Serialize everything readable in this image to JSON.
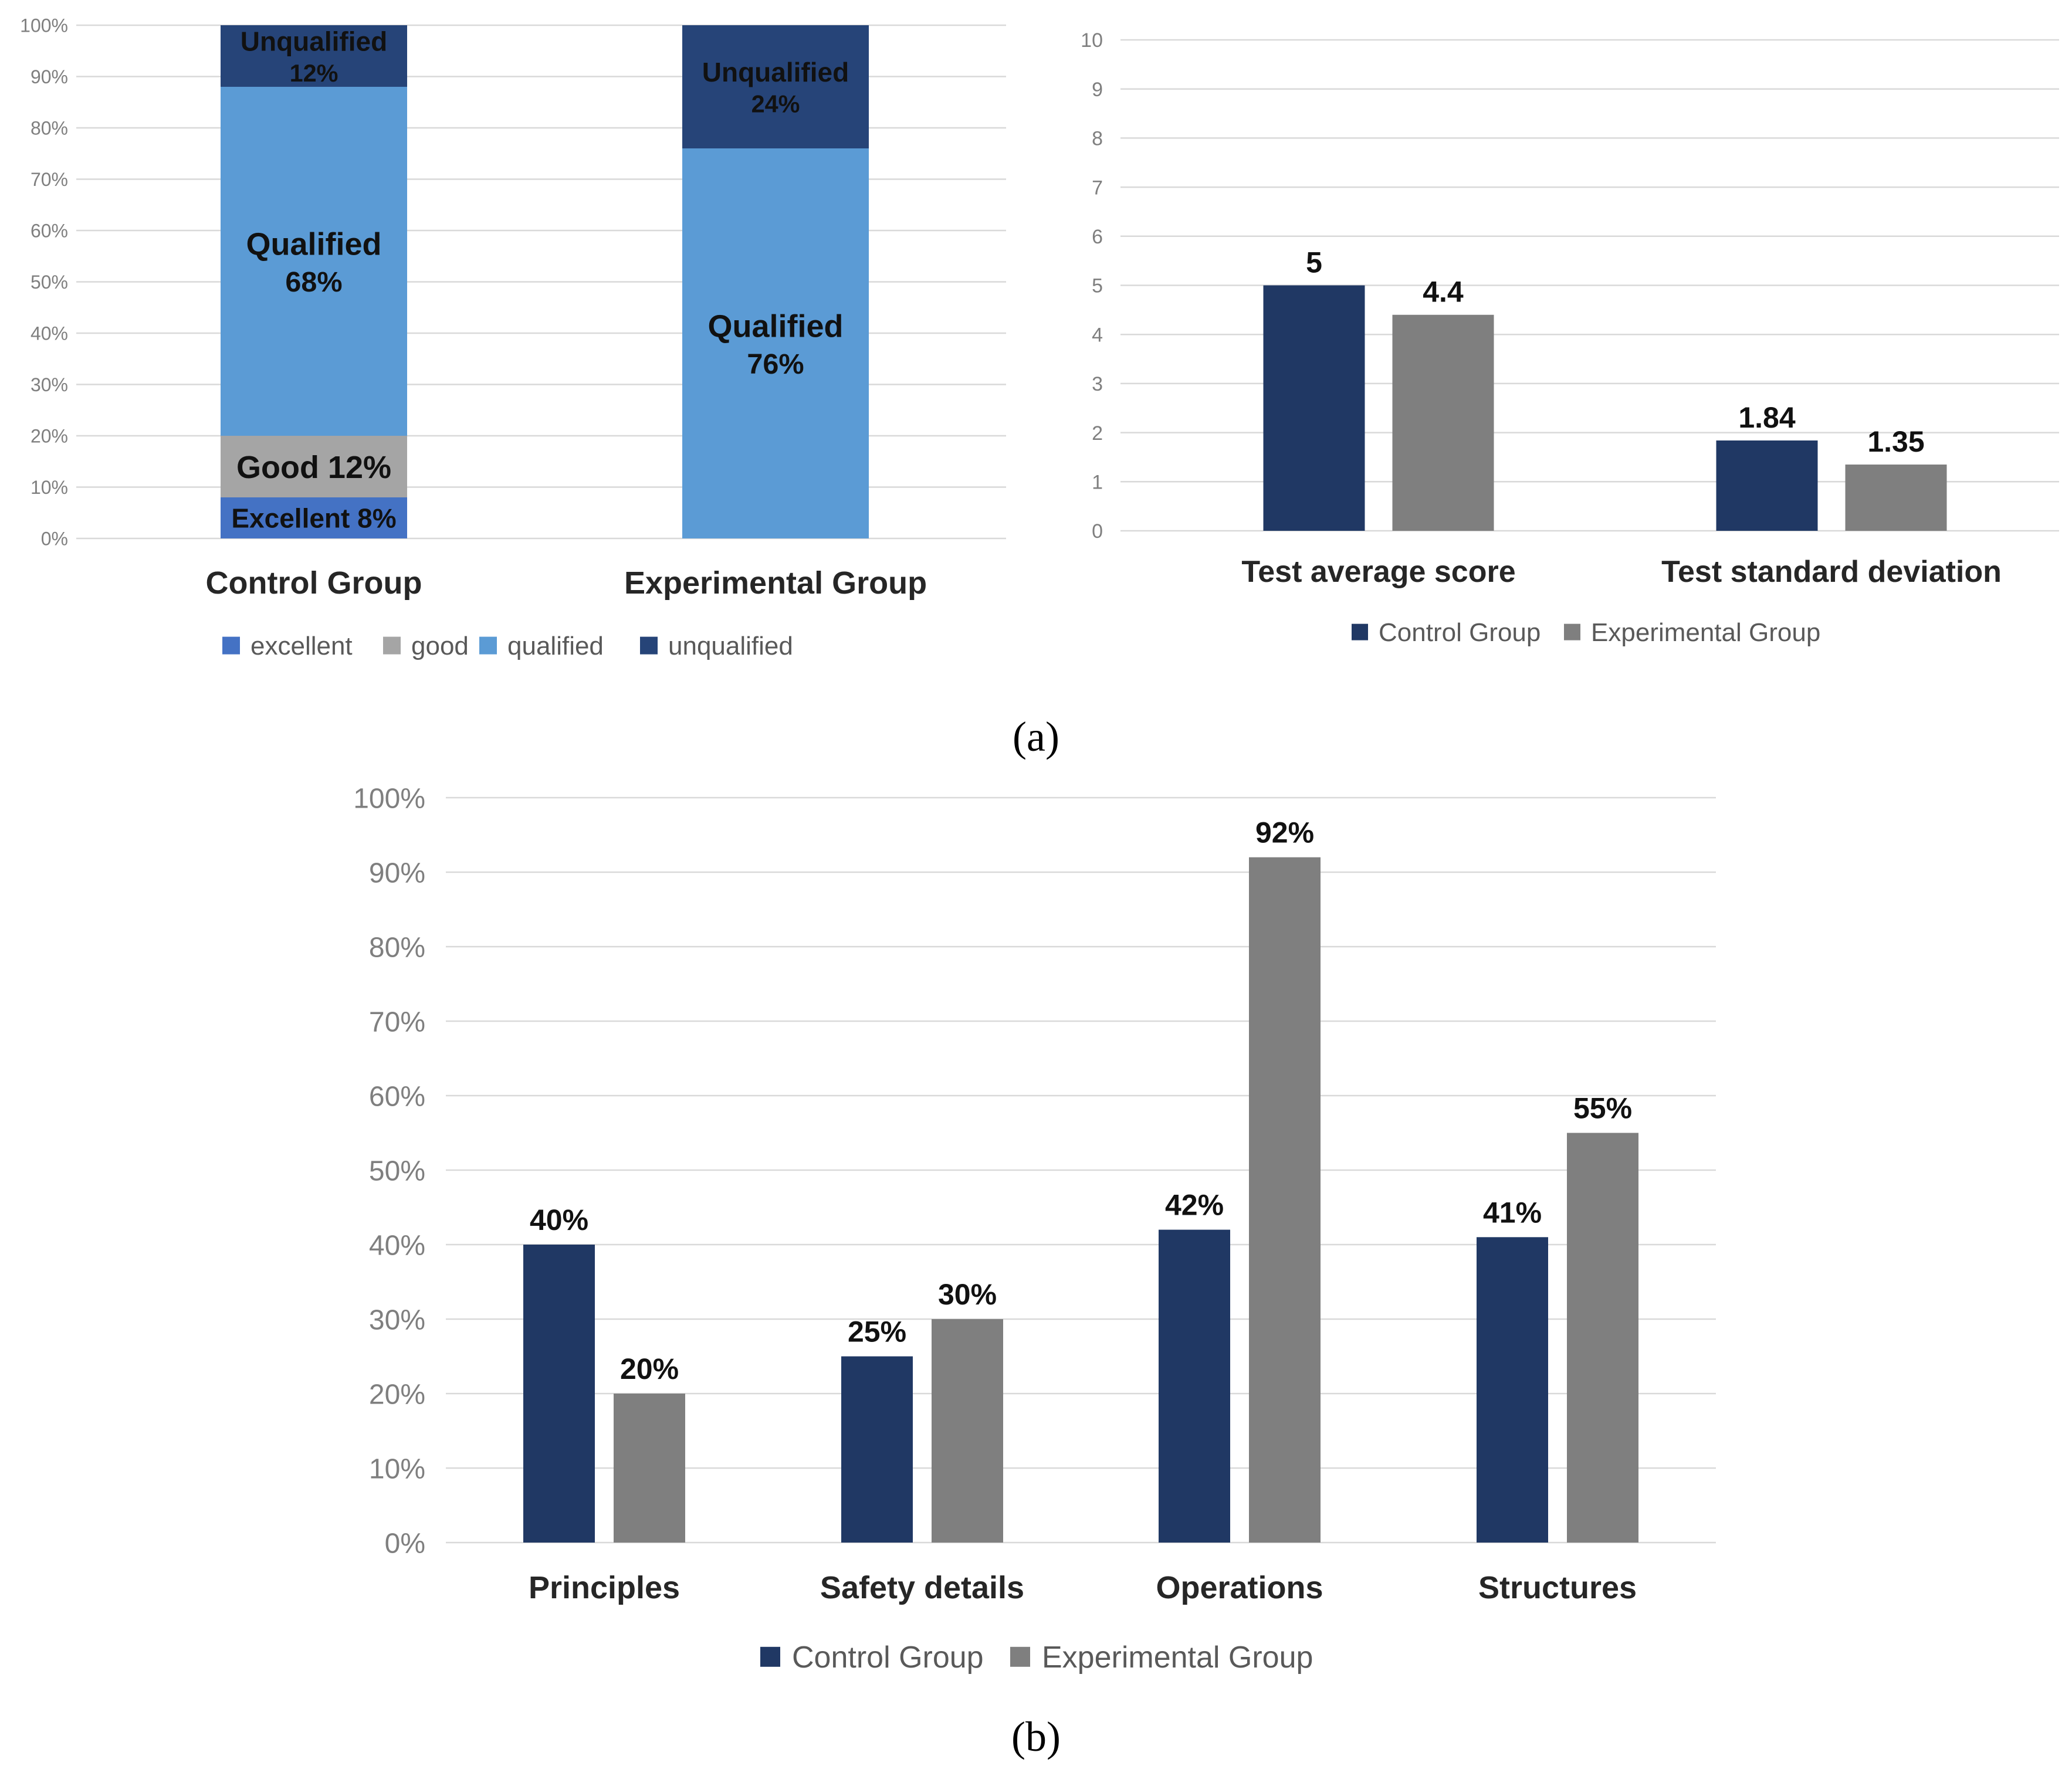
{
  "colors": {
    "excellent": "#4472c4",
    "good": "#a5a5a5",
    "qualified": "#5b9bd5",
    "unqualified": "#264478",
    "control": "#203864",
    "experimental": "#7f7f7f"
  },
  "subfigure_labels": {
    "a": "(a)",
    "b": "(b)"
  },
  "chart_data": [
    {
      "type": "bar",
      "stacked": true,
      "percent": true,
      "categories": [
        "Control Group",
        "Experimental Group"
      ],
      "series": [
        {
          "name": "excellent",
          "values": [
            8,
            0
          ]
        },
        {
          "name": "good",
          "values": [
            12,
            0
          ]
        },
        {
          "name": "qualified",
          "values": [
            68,
            76
          ]
        },
        {
          "name": "unqualified",
          "values": [
            12,
            24
          ]
        }
      ],
      "segment_labels": [
        [
          {
            "series": "excellent",
            "text": "Excellent 8%"
          },
          {
            "series": "good",
            "text": "Good  12%"
          },
          {
            "series": "qualified",
            "line1": "Qualified",
            "line2": "68%"
          },
          {
            "series": "unqualified",
            "line1": "Unqualified",
            "line2": "12%"
          }
        ],
        [
          {
            "series": "qualified",
            "line1": "Qualified",
            "line2": "76%"
          },
          {
            "series": "unqualified",
            "line1": "Unqualified",
            "line2": "24%"
          }
        ]
      ],
      "yticks": [
        "0%",
        "10%",
        "20%",
        "30%",
        "40%",
        "50%",
        "60%",
        "70%",
        "80%",
        "90%",
        "100%"
      ],
      "ylim": [
        0,
        100
      ],
      "grid": true,
      "legend_position": "bottom"
    },
    {
      "type": "bar",
      "categories": [
        "Test average score",
        "Test standard deviation"
      ],
      "series": [
        {
          "name": "Control Group",
          "values": [
            5,
            1.84
          ],
          "labels": [
            "5",
            "1.84"
          ]
        },
        {
          "name": "Experimental Group",
          "values": [
            4.4,
            1.35
          ],
          "labels": [
            "4.4",
            "1.35"
          ]
        }
      ],
      "yticks": [
        "0",
        "1",
        "2",
        "3",
        "4",
        "5",
        "6",
        "7",
        "8",
        "9",
        "10"
      ],
      "ylim": [
        0,
        10
      ],
      "grid": true,
      "legend_position": "bottom"
    },
    {
      "type": "bar",
      "categories": [
        "Principles",
        "Safety details",
        "Operations",
        "Structures"
      ],
      "series": [
        {
          "name": "Control Group",
          "values": [
            40,
            25,
            42,
            41
          ],
          "labels": [
            "40%",
            "25%",
            "42%",
            "41%"
          ]
        },
        {
          "name": "Experimental Group",
          "values": [
            20,
            30,
            92,
            55
          ],
          "labels": [
            "20%",
            "30%",
            "92%",
            "55%"
          ]
        }
      ],
      "yticks": [
        "0%",
        "10%",
        "20%",
        "30%",
        "40%",
        "50%",
        "60%",
        "70%",
        "80%",
        "90%",
        "100%"
      ],
      "ylim": [
        0,
        100
      ],
      "grid": true,
      "legend_position": "bottom"
    }
  ]
}
